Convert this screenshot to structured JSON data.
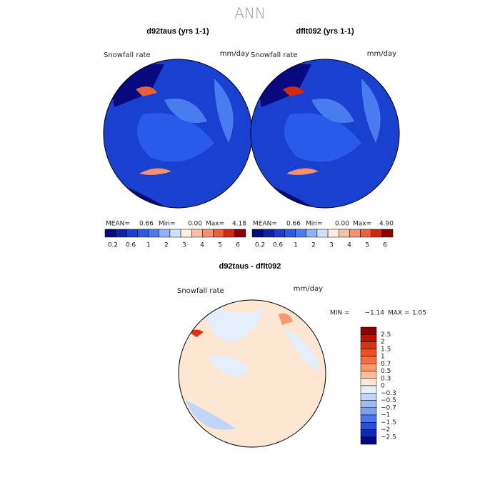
{
  "title": "ANN",
  "panels": [
    {
      "header": "d92taus (yrs 1-1)",
      "variable": "Snowfall rate",
      "units": "mm/day",
      "stats": [
        "MEAN=",
        "0.66",
        "Min=",
        "0.00",
        "Max=",
        "4.18"
      ]
    },
    {
      "header": "dflt092 (yrs 1-1)",
      "variable": "Snowfall rate",
      "units": "mm/day",
      "stats": [
        "MEAN=",
        "0.66",
        "Min=",
        "0.00",
        "Max=",
        "4.90"
      ]
    }
  ],
  "colorbar": {
    "labels": [
      "0.2",
      "0.6",
      "1",
      "2",
      "3",
      "4",
      "5",
      "6"
    ],
    "colors": [
      "#0a0a80",
      "#1020a8",
      "#1a40d0",
      "#2a5ae8",
      "#4a7cf0",
      "#8fb4f6",
      "#cfe0fb",
      "#fdeee0",
      "#f8c0a4",
      "#f39270",
      "#ea6038",
      "#d02a10",
      "#900000"
    ]
  },
  "difference": {
    "header": "d92taus - dflt092",
    "variable": "Snowfall rate",
    "units": "mm/day",
    "stats": [
      "MIN =",
      "−1.14",
      "MAX =",
      "1.05"
    ],
    "colorbar": {
      "labels": [
        "2.5",
        "2",
        "1.5",
        "1",
        "0.7",
        "0.5",
        "0.3",
        "0",
        "−0.3",
        "−0.5",
        "−0.7",
        "−1",
        "−1.5",
        "−2",
        "−2.5"
      ],
      "colors": [
        "#8b0000",
        "#c01000",
        "#e03010",
        "#f05020",
        "#f57040",
        "#f89870",
        "#fbbd9c",
        "#fde6d2",
        "#e4eefc",
        "#c0d6f8",
        "#9cbcf4",
        "#7aa0f0",
        "#4a78e8",
        "#2a50d8",
        "#1228b0",
        "#08087a"
      ]
    }
  }
}
